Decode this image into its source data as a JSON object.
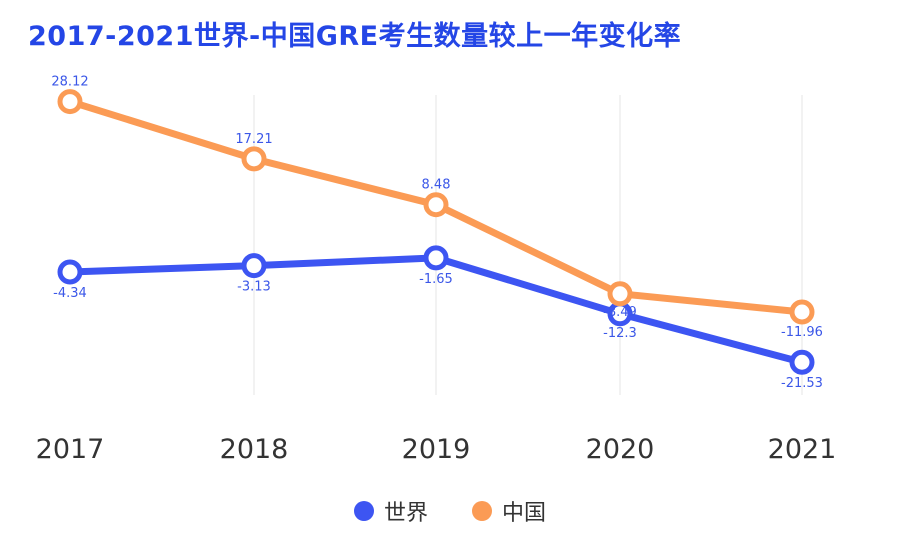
{
  "chart_data": {
    "type": "line",
    "title": "2017-2021世界-中国GRE考生数量较上一年变化率",
    "categories": [
      "2017",
      "2018",
      "2019",
      "2020",
      "2021"
    ],
    "series": [
      {
        "name": "世界",
        "color": "#3d55f2",
        "values": [
          -4.34,
          -3.13,
          -1.65,
          -12.3,
          -21.53
        ],
        "labels": [
          "-4.34",
          "-3.13",
          "-1.65",
          "-12.3",
          "-21.53"
        ]
      },
      {
        "name": "中国",
        "color": "#fb9b55",
        "values": [
          28.12,
          17.21,
          8.48,
          -8.49,
          -11.96
        ],
        "labels": [
          "28.12",
          "17.21",
          "8.48",
          "-8.49",
          "-11.96"
        ]
      }
    ],
    "ylim": [
      -30,
      30
    ],
    "grid": "vertical",
    "legend": "bottom-center",
    "xlabel": "",
    "ylabel": ""
  }
}
